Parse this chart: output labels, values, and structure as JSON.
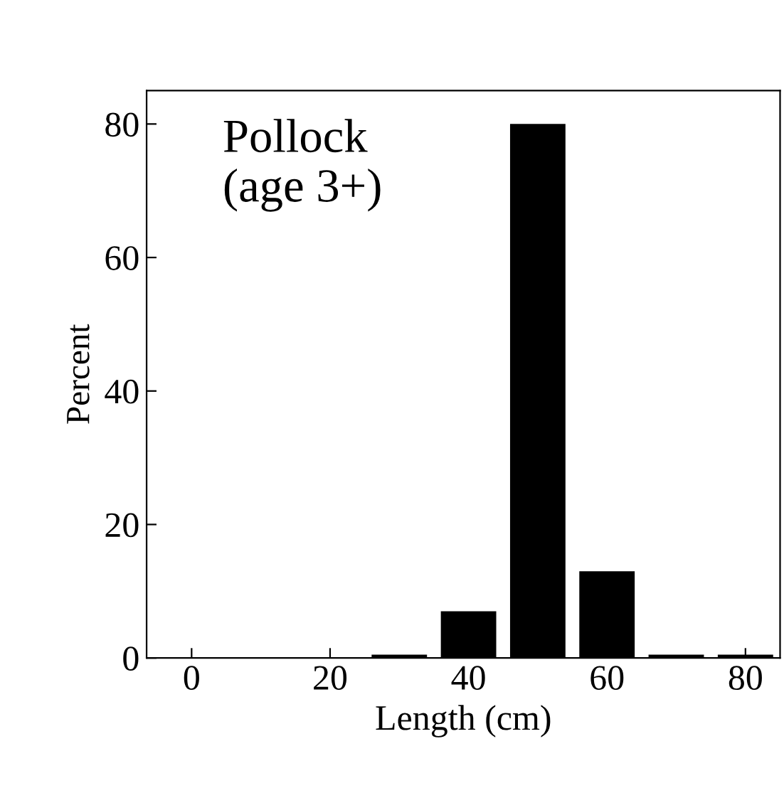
{
  "chart_data": {
    "type": "bar",
    "xlabel": "Length (cm)",
    "ylabel": "Percent",
    "annotations": [
      "Pollock\n(age 3+)"
    ],
    "x": [
      30,
      40,
      50,
      60,
      70,
      80
    ],
    "values": [
      0.5,
      7,
      80,
      13,
      0.5,
      0.5
    ],
    "color": "#000000",
    "xlim": [
      -6.5,
      85
    ],
    "xticks": [
      0,
      20,
      40,
      60,
      80
    ],
    "ylim": [
      0,
      85
    ],
    "yticks": [
      0,
      20,
      40,
      60,
      80
    ],
    "grid": false
  }
}
